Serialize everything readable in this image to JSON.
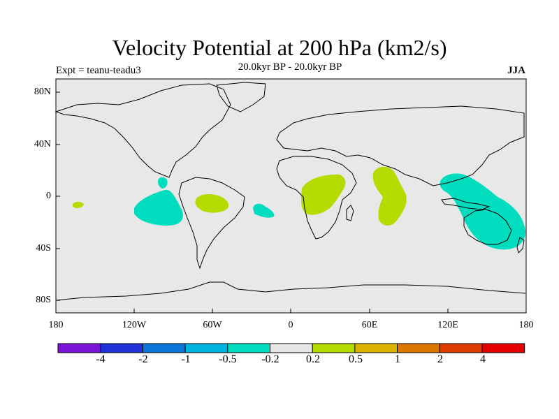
{
  "title": "Velocity Potential at 200 hPa (km2/s)",
  "subtitle": "20.0kyr BP - 20.0kyr BP",
  "left_label": "Expt = teanu-teadu3",
  "right_label": "JJA",
  "y_ticks": [
    "80N",
    "40N",
    "0",
    "40S",
    "80S"
  ],
  "x_ticks": [
    "180",
    "120W",
    "60W",
    "0",
    "60E",
    "120E",
    "180"
  ],
  "colorbar": {
    "labels": [
      "-4",
      "-2",
      "-1",
      "-0.5",
      "-0.2",
      "0.2",
      "0.5",
      "1",
      "2",
      "4"
    ],
    "colors": [
      "#7a14d8",
      "#1e32d8",
      "#0a78d8",
      "#00b4e0",
      "#00dcbe",
      "#e6e6e6",
      "#b4dc00",
      "#dcb400",
      "#dc7800",
      "#dc3c00",
      "#e60000"
    ]
  },
  "map": {
    "background": "#e8e8e8",
    "positive_color": "#b4dc00",
    "negative_color": "#00dcbe"
  }
}
